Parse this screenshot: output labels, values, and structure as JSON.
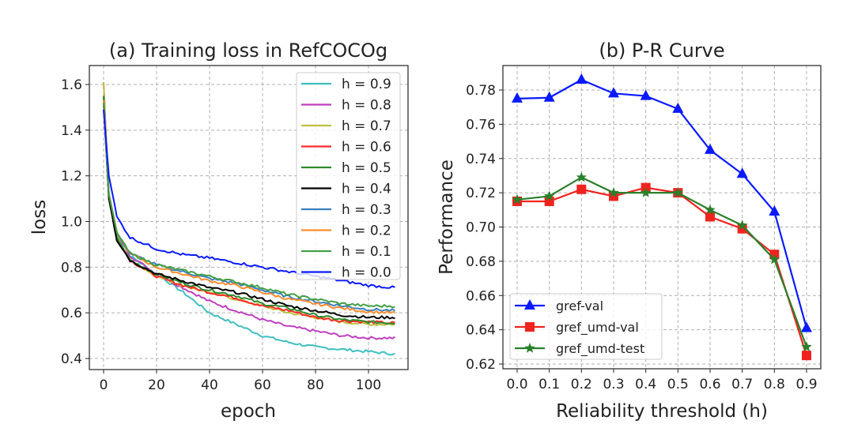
{
  "chart_data": [
    {
      "type": "line",
      "title": "(a) Training loss in RefCOCOg",
      "xlabel": "epoch",
      "ylabel": "loss",
      "xlim": [
        -5,
        115
      ],
      "ylim": [
        0.36,
        1.67
      ],
      "xticks": [
        0,
        20,
        40,
        60,
        80,
        100
      ],
      "yticks": [
        0.4,
        0.6,
        0.8,
        1.0,
        1.2,
        1.4,
        1.6
      ],
      "ytick_labels": [
        "0.4",
        "0.6",
        "0.8",
        "1.0",
        "1.2",
        "1.4",
        "1.6"
      ],
      "grid": true,
      "legend_position": "top-right",
      "x": [
        0,
        2,
        5,
        10,
        20,
        30,
        40,
        50,
        60,
        70,
        80,
        90,
        100,
        110
      ],
      "series": [
        {
          "name": "h = 0.9",
          "color": "#3fbfbf",
          "values": [
            1.52,
            1.12,
            0.95,
            0.85,
            0.77,
            0.69,
            0.6,
            0.55,
            0.5,
            0.47,
            0.45,
            0.44,
            0.43,
            0.42
          ]
        },
        {
          "name": "h = 0.8",
          "color": "#bf3fbf",
          "values": [
            1.61,
            1.12,
            0.95,
            0.85,
            0.77,
            0.71,
            0.65,
            0.61,
            0.57,
            0.54,
            0.52,
            0.5,
            0.49,
            0.49
          ]
        },
        {
          "name": "h = 0.7",
          "color": "#bfbf3f",
          "values": [
            1.61,
            1.1,
            0.93,
            0.83,
            0.76,
            0.72,
            0.69,
            0.66,
            0.63,
            0.6,
            0.58,
            0.56,
            0.55,
            0.55
          ]
        },
        {
          "name": "h = 0.6",
          "color": "#ff2a2a",
          "values": [
            1.55,
            1.1,
            0.93,
            0.83,
            0.76,
            0.72,
            0.69,
            0.665,
            0.63,
            0.61,
            0.58,
            0.565,
            0.56,
            0.555
          ]
        },
        {
          "name": "h = 0.5",
          "color": "#2e8b2e",
          "values": [
            1.55,
            1.1,
            0.93,
            0.83,
            0.77,
            0.73,
            0.7,
            0.675,
            0.64,
            0.62,
            0.59,
            0.57,
            0.56,
            0.555
          ]
        },
        {
          "name": "h = 0.4",
          "color": "#000000",
          "values": [
            1.52,
            1.1,
            0.92,
            0.83,
            0.77,
            0.74,
            0.71,
            0.69,
            0.66,
            0.63,
            0.61,
            0.59,
            0.58,
            0.58
          ]
        },
        {
          "name": "h = 0.3",
          "color": "#3a7fc0",
          "values": [
            1.52,
            1.12,
            0.95,
            0.86,
            0.81,
            0.78,
            0.75,
            0.73,
            0.7,
            0.67,
            0.65,
            0.63,
            0.615,
            0.61
          ]
        },
        {
          "name": "h = 0.2",
          "color": "#ff8c2e",
          "values": [
            1.53,
            1.12,
            0.95,
            0.86,
            0.8,
            0.77,
            0.74,
            0.72,
            0.69,
            0.66,
            0.64,
            0.62,
            0.605,
            0.6
          ]
        },
        {
          "name": "h = 0.1",
          "color": "#44a044",
          "values": [
            1.52,
            1.12,
            0.95,
            0.86,
            0.81,
            0.785,
            0.76,
            0.735,
            0.71,
            0.68,
            0.66,
            0.64,
            0.63,
            0.63
          ]
        },
        {
          "name": "h = 0.0",
          "color": "#0a1aff",
          "values": [
            1.49,
            1.2,
            1.02,
            0.93,
            0.88,
            0.855,
            0.84,
            0.82,
            0.8,
            0.78,
            0.76,
            0.74,
            0.72,
            0.71
          ]
        }
      ]
    },
    {
      "type": "line",
      "title": "(b) P-R Curve",
      "xlabel": "Reliability threshold (h)",
      "ylabel": "Performance",
      "categories": [
        "0.0",
        "0.1",
        "0.2",
        "0.3",
        "0.4",
        "0.5",
        "0.6",
        "0.7",
        "0.8",
        "0.9"
      ],
      "xlim": [
        -0.05,
        0.95
      ],
      "ylim": [
        0.617,
        0.7915
      ],
      "yticks": [
        0.62,
        0.64,
        0.66,
        0.68,
        0.7,
        0.72,
        0.74,
        0.76,
        0.78
      ],
      "ytick_labels": [
        "0.62",
        "0.64",
        "0.66",
        "0.68",
        "0.70",
        "0.72",
        "0.74",
        "0.76",
        "0.78"
      ],
      "grid": true,
      "legend_position": "bottom-left",
      "series": [
        {
          "name": "gref-val",
          "color": "#0a1aff",
          "marker": "triangle",
          "values": [
            0.775,
            0.7755,
            0.786,
            0.778,
            0.7765,
            0.769,
            0.745,
            0.731,
            0.709,
            0.641
          ]
        },
        {
          "name": "gref_umd-val",
          "color": "#f0231e",
          "marker": "square",
          "values": [
            0.715,
            0.715,
            0.722,
            0.718,
            0.723,
            0.72,
            0.706,
            0.699,
            0.684,
            0.625
          ]
        },
        {
          "name": "gref_umd-test",
          "color": "#2a7f2a",
          "marker": "star",
          "values": [
            0.716,
            0.718,
            0.729,
            0.72,
            0.72,
            0.72,
            0.71,
            0.701,
            0.681,
            0.63
          ]
        }
      ]
    }
  ]
}
